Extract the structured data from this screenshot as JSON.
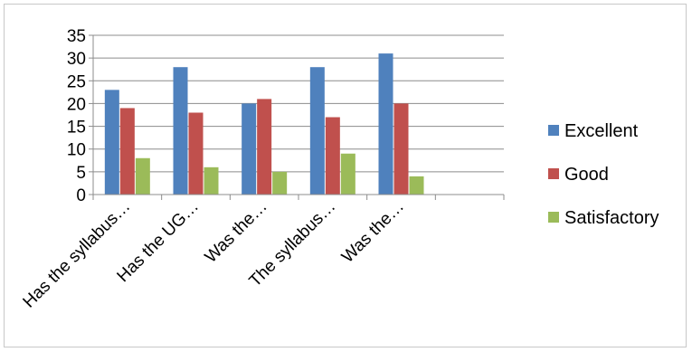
{
  "chart_data": {
    "type": "bar",
    "categories": [
      "Has the syllabus…",
      "Has the UG…",
      "Was the…",
      "The syllabus…",
      "Was the…",
      ""
    ],
    "series": [
      {
        "name": "Excellent",
        "color": "#4f81bd",
        "values": [
          23,
          28,
          20,
          28,
          31,
          null
        ]
      },
      {
        "name": "Good",
        "color": "#c0504d",
        "values": [
          19,
          18,
          21,
          17,
          20,
          null
        ]
      },
      {
        "name": "Satisfactory",
        "color": "#9bbb59",
        "values": [
          8,
          6,
          5,
          9,
          4,
          null
        ]
      }
    ],
    "ylim": [
      0,
      35
    ],
    "yticks": [
      0,
      5,
      10,
      15,
      20,
      25,
      30,
      35
    ],
    "grid": true,
    "legend": "right"
  }
}
